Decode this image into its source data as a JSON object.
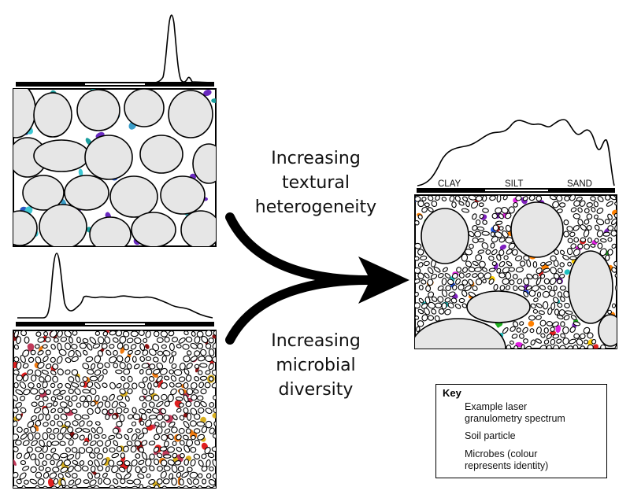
{
  "texture_label": [
    "Increasing",
    "textural",
    "heterogeneity"
  ],
  "diversity_label": [
    "Increasing",
    "microbial",
    "diversity"
  ],
  "size_axis": {
    "clay": "CLAY",
    "silt": "SILT",
    "sand": "SAND"
  },
  "key": {
    "title": "Key",
    "spectrum_lines": [
      "Example laser",
      "granulometry spectrum"
    ],
    "particle": "Soil particle",
    "microbe_lines": [
      "Microbes (colour",
      "represents identity)"
    ]
  },
  "colors": {
    "particle_fill": "#e6e6e6",
    "outline": "#000000",
    "microbe_palette_top": [
      "#1a9e9e",
      "#3b9ec9",
      "#2a58c2",
      "#6a2ac0",
      "#3ec8d4"
    ],
    "microbe_palette_bottom": [
      "#e02020",
      "#f07a10",
      "#d9b020",
      "#c03a5a",
      "#8a1010"
    ],
    "microbe_palette_right": [
      "#e020e0",
      "#20b020",
      "#ffd000",
      "#2050e0",
      "#ff8000",
      "#20c0c0",
      "#e02020",
      "#8020c0"
    ]
  }
}
